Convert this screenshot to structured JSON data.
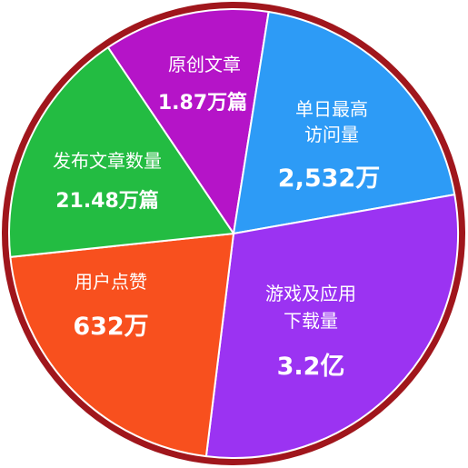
{
  "chart_data": {
    "type": "pie",
    "categories": [
      "原创文章",
      "单日最高访问量",
      "游戏及应用下载量",
      "用户点赞",
      "发布文章数量"
    ],
    "slices": [
      {
        "label_lines": [
          "原创文章"
        ],
        "value_text": "1.87万篇",
        "color": "#B514C8"
      },
      {
        "label_lines": [
          "单日最高",
          "访问量"
        ],
        "value_text": "2,532万",
        "color": "#2D9BF6"
      },
      {
        "label_lines": [
          "游戏及应用",
          "下载量"
        ],
        "value_text": "3.2亿",
        "color": "#9B33F2"
      },
      {
        "label_lines": [
          "用户点赞"
        ],
        "value_text": "632万",
        "color": "#F8501E"
      },
      {
        "label_lines": [
          "发布文章数量"
        ],
        "value_text": "21.48万篇",
        "color": "#23BC42"
      }
    ],
    "border_color": "#A0161C"
  }
}
